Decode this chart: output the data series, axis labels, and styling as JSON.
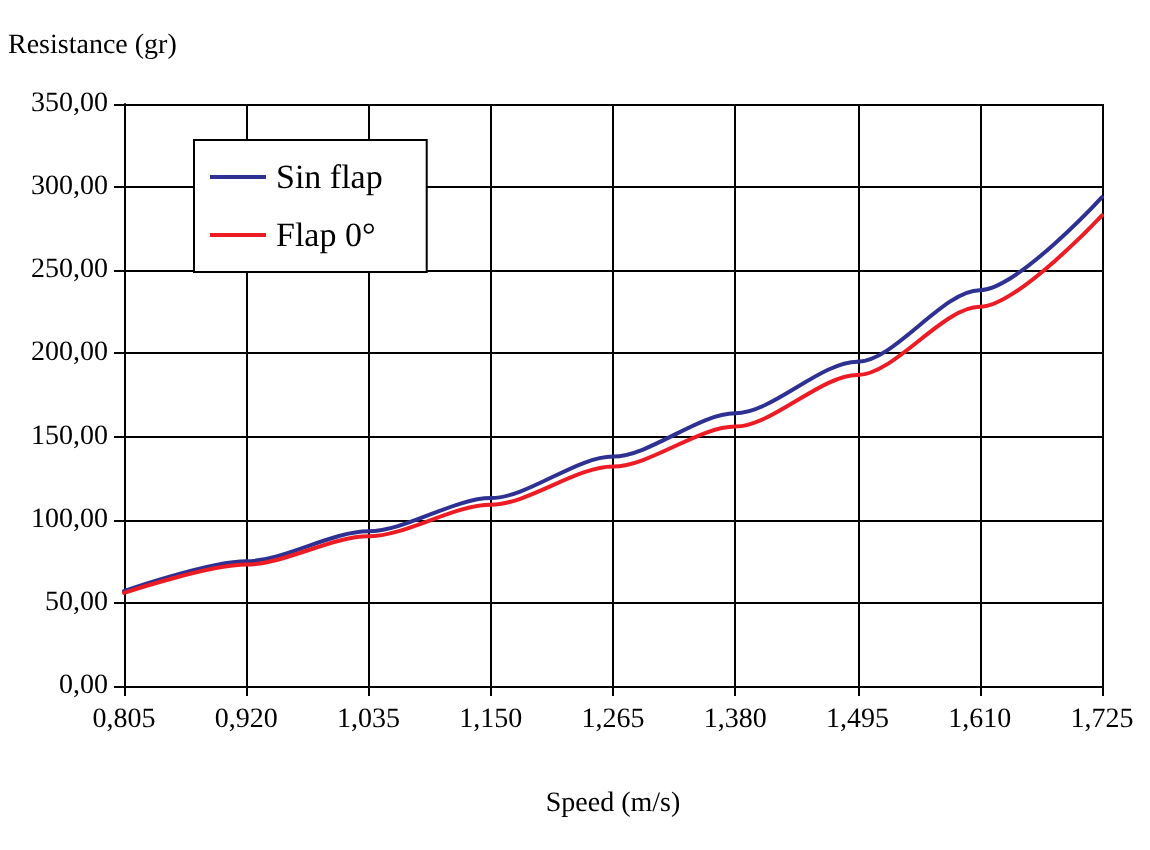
{
  "chart_data": {
    "type": "line",
    "xlabel": "Speed (m/s)",
    "ylabel": "Resistance (gr)",
    "x": [
      0.805,
      0.92,
      1.035,
      1.15,
      1.265,
      1.38,
      1.495,
      1.61,
      1.725
    ],
    "series": [
      {
        "name": "Sin flap",
        "color": "#2e3192",
        "values": [
          57,
          75,
          93,
          113,
          138,
          164,
          195,
          238,
          294
        ]
      },
      {
        "name": "Flap 0°",
        "color": "#ed1c24",
        "values": [
          56,
          73,
          90,
          109,
          132,
          156,
          187,
          228,
          283
        ]
      }
    ],
    "xlim": [
      0.805,
      1.725
    ],
    "xticks": [
      {
        "value": 0.805,
        "label": "0,805"
      },
      {
        "value": 0.92,
        "label": "0,920"
      },
      {
        "value": 1.035,
        "label": "1,035"
      },
      {
        "value": 1.15,
        "label": "1,150"
      },
      {
        "value": 1.265,
        "label": "1,265"
      },
      {
        "value": 1.38,
        "label": "1,380"
      },
      {
        "value": 1.495,
        "label": "1,495"
      },
      {
        "value": 1.61,
        "label": "1,610"
      },
      {
        "value": 1.725,
        "label": "1,725"
      }
    ],
    "ylim": [
      0,
      350
    ],
    "yticks": [
      {
        "value": 0,
        "label": "0,00"
      },
      {
        "value": 50,
        "label": "50,00"
      },
      {
        "value": 100,
        "label": "100,00"
      },
      {
        "value": 150,
        "label": "150,00"
      },
      {
        "value": 200,
        "label": "200,00"
      },
      {
        "value": 250,
        "label": "250,00"
      },
      {
        "value": 300,
        "label": "300,00"
      },
      {
        "value": 350,
        "label": "350,00"
      }
    ],
    "grid": true,
    "legend": "top left",
    "marker": "none",
    "line_style": "solid"
  }
}
